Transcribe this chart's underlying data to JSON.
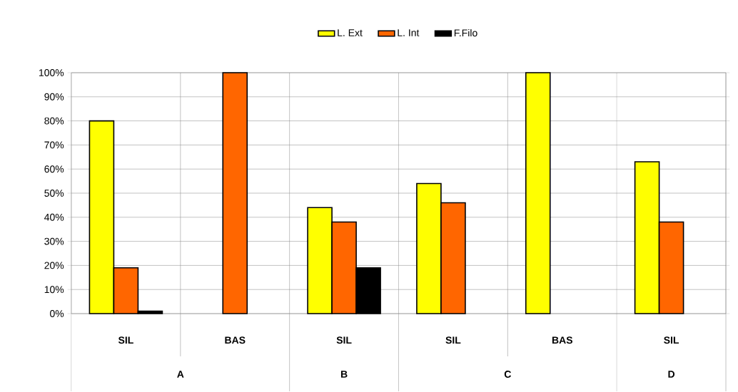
{
  "chart_data": {
    "type": "bar",
    "categories": [
      "SIL",
      "BAS",
      "SIL",
      "SIL",
      "BAS",
      "SIL"
    ],
    "series": [
      {
        "name": "L. Ext",
        "color": "#ffff00",
        "values": [
          80,
          null,
          44,
          54,
          100,
          63
        ]
      },
      {
        "name": "L. Int",
        "color": "#ff6600",
        "values": [
          19,
          100,
          38,
          46,
          null,
          38
        ]
      },
      {
        "name": "F.Filo",
        "color": "#000000",
        "values": [
          1,
          null,
          19,
          null,
          null,
          null
        ]
      }
    ],
    "ylim": [
      0,
      100
    ],
    "yticks": [
      {
        "value": 0,
        "label": "0%"
      },
      {
        "value": 10,
        "label": "10%"
      },
      {
        "value": 20,
        "label": "20%"
      },
      {
        "value": 30,
        "label": "30%"
      },
      {
        "value": 40,
        "label": "40%"
      },
      {
        "value": 50,
        "label": "50%"
      },
      {
        "value": 60,
        "label": "60%"
      },
      {
        "value": 70,
        "label": "70%"
      },
      {
        "value": 80,
        "label": "80%"
      },
      {
        "value": 90,
        "label": "90%"
      },
      {
        "value": 100,
        "label": "100%"
      }
    ],
    "grid": "y",
    "legend": "top",
    "annotations": [
      "A",
      "B",
      "C",
      "D"
    ]
  }
}
